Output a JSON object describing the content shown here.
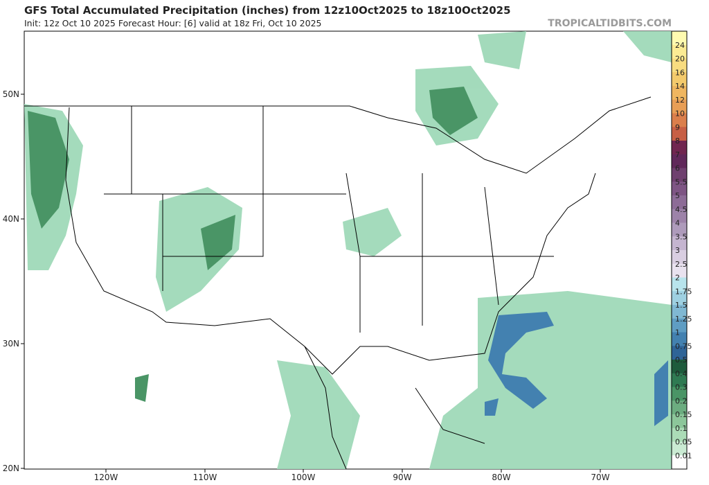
{
  "header": {
    "title": "GFS Total Accumulated Precipitation (inches) from 12z10Oct2025 to 18z10Oct2025",
    "subtitle": "Init: 12z Oct 10 2025   Forecast Hour: [6]   valid at 18z Fri, Oct 10 2025",
    "watermark": "TROPICALTIDBITS.COM"
  },
  "axes": {
    "lon_labels": [
      "120W",
      "110W",
      "100W",
      "90W",
      "80W",
      "70W"
    ],
    "lat_labels": [
      "50N",
      "40N",
      "30N",
      "20N"
    ]
  },
  "colorbar": {
    "labels": [
      "24",
      "20",
      "16",
      "14",
      "12",
      "10",
      "9",
      "8",
      "7",
      "6",
      "5.5",
      "5",
      "4.5",
      "4",
      "3.5",
      "3",
      "2.5",
      "2",
      "1.75",
      "1.5",
      "1.25",
      "1",
      "0.75",
      "0.5",
      "0.4",
      "0.3",
      "0.2",
      "0.15",
      "0.1",
      "0.05",
      "0.01"
    ],
    "colors": [
      "#fffbb0",
      "#fbeb94",
      "#f8dc80",
      "#f4ca6c",
      "#efb660",
      "#e89e56",
      "#db7f4c",
      "#c75f45",
      "#702650",
      "#60285a",
      "#6f406f",
      "#7e5584",
      "#8d6c97",
      "#9d83a9",
      "#ae9bbb",
      "#c5b5d0",
      "#d9cee1",
      "#e9e2ef",
      "#b8e4ec",
      "#9ed0e1",
      "#80b8d3",
      "#5f9dc3",
      "#4381b0",
      "#2f6497",
      "#1e5b3c",
      "#2f7a52",
      "#4a9566",
      "#6cad80",
      "#8cc69a",
      "#acdcb7",
      "#caebd3",
      "#ffffff"
    ]
  }
}
